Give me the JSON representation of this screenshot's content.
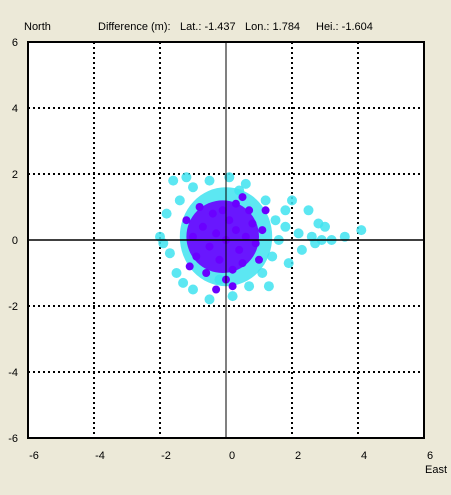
{
  "header": {
    "north_label": "North",
    "difference_label": "Difference (m):",
    "lat_text": "Lat.: -1.437",
    "lon_text": "Lon.: 1.784",
    "hei_text": "Hei.: -1.604"
  },
  "colors": {
    "background": "#ECE9D8",
    "plot_bg": "#FFFFFF",
    "core": "#6A00FF",
    "halo": "#3FE3F0"
  },
  "chart_data": {
    "type": "scatter",
    "title": "",
    "xlabel": "East",
    "ylabel": "North",
    "xlim": [
      -6,
      6
    ],
    "ylim": [
      -6,
      6
    ],
    "x_ticks": [
      "-6",
      "-4",
      "-2",
      "0",
      "2",
      "4",
      "6"
    ],
    "y_ticks": [
      "6",
      "4",
      "2",
      "0",
      "-2",
      "-4",
      "-6"
    ],
    "grid": true,
    "series": [
      {
        "color": "#6A00FF",
        "points": [
          [
            0,
            0
          ],
          [
            -0.3,
            0.2
          ],
          [
            0.3,
            0.3
          ],
          [
            -0.5,
            -0.2
          ],
          [
            0.4,
            -0.3
          ],
          [
            0.1,
            0.6
          ],
          [
            -0.2,
            -0.6
          ],
          [
            0.6,
            0.1
          ],
          [
            -0.7,
            0.4
          ],
          [
            0.2,
            -0.9
          ],
          [
            -0.1,
            0.9
          ],
          [
            0.8,
            0.5
          ],
          [
            -0.9,
            -0.5
          ],
          [
            0.5,
            -0.7
          ],
          [
            -0.4,
            0.8
          ],
          [
            0.9,
            -0.1
          ],
          [
            -1.0,
            0.1
          ],
          [
            0.0,
            -1.2
          ],
          [
            0.3,
            1.1
          ],
          [
            -0.6,
            -1.0
          ],
          [
            1.1,
            0.3
          ],
          [
            -1.2,
            0.6
          ],
          [
            0.7,
            0.9
          ],
          [
            -0.8,
            1.0
          ],
          [
            0.2,
            -1.4
          ],
          [
            1.0,
            -0.6
          ],
          [
            -1.1,
            -0.8
          ],
          [
            0.5,
            1.3
          ],
          [
            -0.3,
            -1.5
          ],
          [
            1.2,
            0.9
          ]
        ]
      },
      {
        "color": "#3FE3F0",
        "points": [
          [
            -1.6,
            1.8
          ],
          [
            -1.4,
            1.2
          ],
          [
            -1.8,
            0.8
          ],
          [
            -2.0,
            0.1
          ],
          [
            -1.7,
            -0.4
          ],
          [
            -1.5,
            -1.0
          ],
          [
            -1.0,
            -1.5
          ],
          [
            -0.5,
            -1.8
          ],
          [
            0.2,
            -1.7
          ],
          [
            0.7,
            -1.4
          ],
          [
            1.1,
            -1.0
          ],
          [
            1.4,
            -0.5
          ],
          [
            1.6,
            0.0
          ],
          [
            1.5,
            0.6
          ],
          [
            1.2,
            1.2
          ],
          [
            0.6,
            1.7
          ],
          [
            0.1,
            1.9
          ],
          [
            -0.5,
            1.8
          ],
          [
            -1.0,
            1.6
          ],
          [
            1.8,
            0.4
          ],
          [
            2.2,
            0.2
          ],
          [
            2.6,
            0.1
          ],
          [
            2.9,
            0.0
          ],
          [
            3.2,
            0.0
          ],
          [
            3.6,
            0.1
          ],
          [
            4.1,
            0.3
          ],
          [
            2.8,
            0.5
          ],
          [
            2.5,
            0.9
          ],
          [
            2.0,
            1.2
          ],
          [
            1.8,
            0.9
          ],
          [
            2.3,
            -0.3
          ],
          [
            2.7,
            -0.1
          ],
          [
            3.0,
            0.4
          ],
          [
            1.9,
            -0.7
          ],
          [
            1.3,
            -1.4
          ],
          [
            -0.2,
            -1.2
          ],
          [
            -1.3,
            -1.3
          ],
          [
            -1.9,
            -0.1
          ],
          [
            -1.2,
            1.9
          ],
          [
            0.4,
            1.5
          ]
        ]
      }
    ]
  }
}
